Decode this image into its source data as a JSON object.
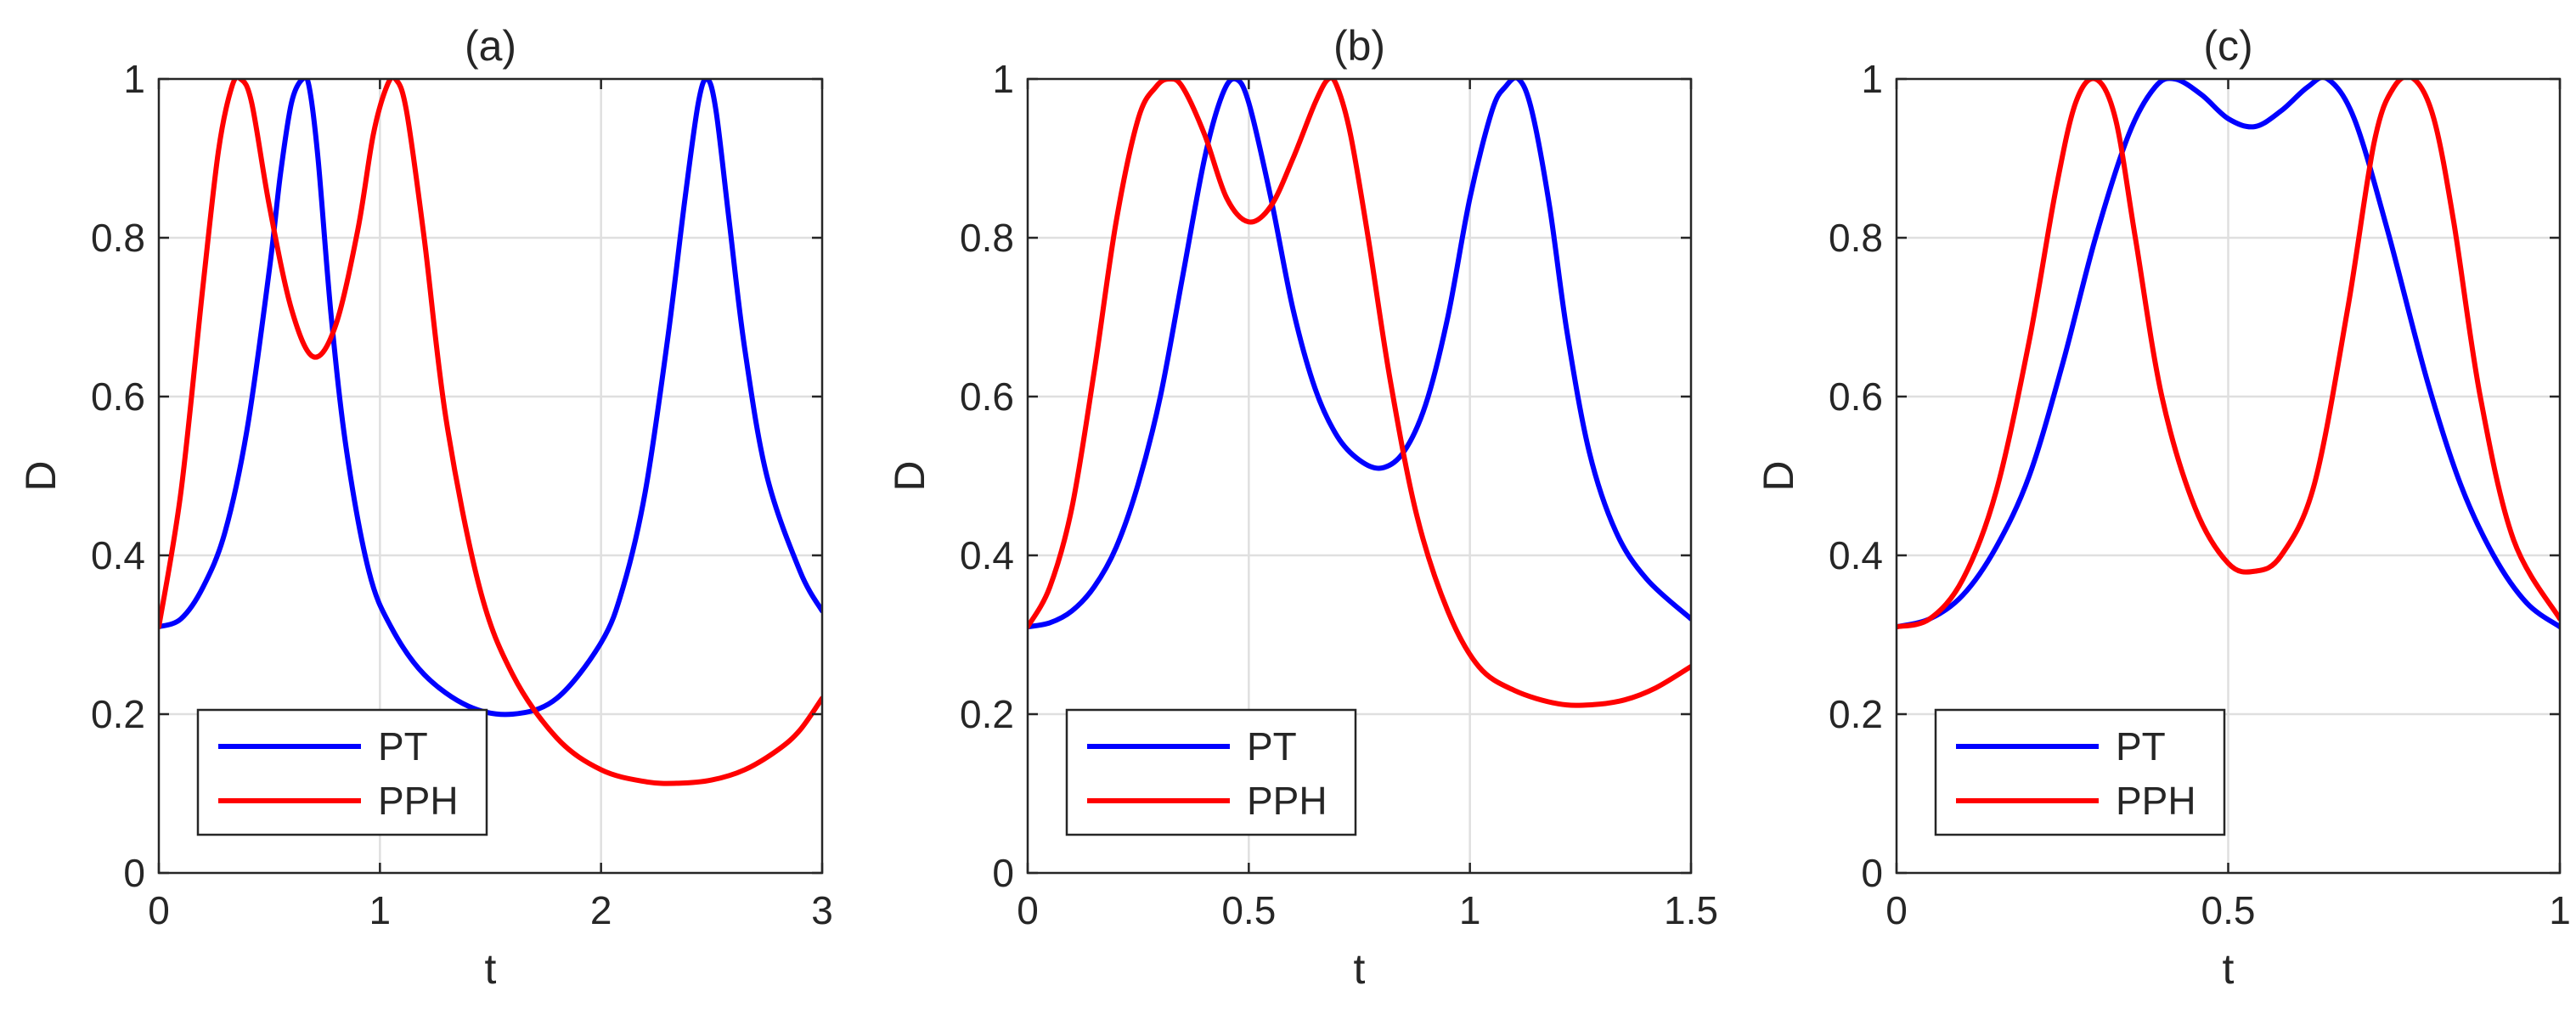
{
  "chart_data": [
    {
      "type": "line",
      "title": "(a)",
      "xlabel": "t",
      "ylabel": "D",
      "xlim": [
        0,
        3
      ],
      "ylim": [
        0,
        1
      ],
      "xticks": [
        0,
        1,
        2,
        3
      ],
      "xtick_labels": [
        "0",
        "1",
        "2",
        "3"
      ],
      "yticks": [
        0,
        0.2,
        0.4,
        0.6,
        0.8,
        1
      ],
      "ytick_labels": [
        "0",
        "0.2",
        "0.4",
        "0.6",
        "0.8",
        "1"
      ],
      "grid": true,
      "legend_position": "bottom-left",
      "series": [
        {
          "name": "PT",
          "color": "#0000ff",
          "x": [
            0,
            0.1,
            0.2,
            0.3,
            0.4,
            0.5,
            0.55,
            0.6,
            0.65,
            0.68,
            0.72,
            0.78,
            0.85,
            0.95,
            1.05,
            1.2,
            1.4,
            1.6,
            1.8,
            2.0,
            2.1,
            2.2,
            2.3,
            2.38,
            2.44,
            2.48,
            2.52,
            2.58,
            2.65,
            2.75,
            2.9,
            3.0
          ],
          "y": [
            0.31,
            0.32,
            0.36,
            0.43,
            0.56,
            0.76,
            0.88,
            0.97,
            1.0,
            0.99,
            0.9,
            0.7,
            0.53,
            0.38,
            0.31,
            0.25,
            0.21,
            0.2,
            0.22,
            0.29,
            0.36,
            0.48,
            0.67,
            0.85,
            0.97,
            1.0,
            0.96,
            0.82,
            0.66,
            0.5,
            0.38,
            0.33
          ]
        },
        {
          "name": "PPH",
          "color": "#ff0000",
          "x": [
            0,
            0.1,
            0.2,
            0.27,
            0.33,
            0.37,
            0.42,
            0.5,
            0.6,
            0.7,
            0.8,
            0.9,
            0.97,
            1.03,
            1.07,
            1.12,
            1.2,
            1.3,
            1.45,
            1.6,
            1.8,
            2.0,
            2.2,
            2.35,
            2.5,
            2.65,
            2.8,
            2.9,
            3.0
          ],
          "y": [
            0.31,
            0.48,
            0.74,
            0.91,
            0.99,
            1.0,
            0.97,
            0.84,
            0.71,
            0.65,
            0.69,
            0.81,
            0.93,
            0.99,
            1.0,
            0.96,
            0.8,
            0.57,
            0.36,
            0.25,
            0.17,
            0.13,
            0.115,
            0.113,
            0.117,
            0.13,
            0.155,
            0.18,
            0.22
          ]
        }
      ]
    },
    {
      "type": "line",
      "title": "(b)",
      "xlabel": "t",
      "ylabel": "D",
      "xlim": [
        0,
        1.5
      ],
      "ylim": [
        0,
        1
      ],
      "xticks": [
        0,
        0.5,
        1,
        1.5
      ],
      "xtick_labels": [
        "0",
        "0.5",
        "1",
        "1.5"
      ],
      "yticks": [
        0,
        0.2,
        0.4,
        0.6,
        0.8,
        1
      ],
      "ytick_labels": [
        "0",
        "0.2",
        "0.4",
        "0.6",
        "0.8",
        "1"
      ],
      "grid": true,
      "legend_position": "bottom-left",
      "series": [
        {
          "name": "PT",
          "color": "#0000ff",
          "x": [
            0,
            0.05,
            0.1,
            0.15,
            0.2,
            0.25,
            0.3,
            0.35,
            0.4,
            0.44,
            0.47,
            0.5,
            0.55,
            0.6,
            0.65,
            0.7,
            0.75,
            0.8,
            0.85,
            0.9,
            0.95,
            1.0,
            1.05,
            1.08,
            1.11,
            1.14,
            1.18,
            1.22,
            1.27,
            1.33,
            1.4,
            1.5
          ],
          "y": [
            0.31,
            0.315,
            0.33,
            0.36,
            0.41,
            0.49,
            0.6,
            0.75,
            0.9,
            0.98,
            1.0,
            0.97,
            0.85,
            0.71,
            0.61,
            0.55,
            0.52,
            0.51,
            0.53,
            0.59,
            0.7,
            0.85,
            0.96,
            0.99,
            1.0,
            0.96,
            0.84,
            0.68,
            0.53,
            0.43,
            0.37,
            0.32
          ]
        },
        {
          "name": "PPH",
          "color": "#ff0000",
          "x": [
            0,
            0.05,
            0.1,
            0.15,
            0.2,
            0.25,
            0.29,
            0.32,
            0.35,
            0.4,
            0.45,
            0.5,
            0.55,
            0.6,
            0.65,
            0.68,
            0.7,
            0.73,
            0.77,
            0.82,
            0.88,
            0.95,
            1.02,
            1.1,
            1.2,
            1.28,
            1.35,
            1.42,
            1.5
          ],
          "y": [
            0.31,
            0.36,
            0.46,
            0.63,
            0.82,
            0.95,
            0.99,
            1.0,
            0.99,
            0.93,
            0.85,
            0.82,
            0.84,
            0.9,
            0.97,
            1.0,
            0.99,
            0.93,
            0.8,
            0.62,
            0.45,
            0.33,
            0.26,
            0.23,
            0.213,
            0.212,
            0.218,
            0.233,
            0.26
          ]
        }
      ]
    },
    {
      "type": "line",
      "title": "(c)",
      "xlabel": "t",
      "ylabel": "D",
      "xlim": [
        0,
        1
      ],
      "ylim": [
        0,
        1
      ],
      "xticks": [
        0,
        0.5,
        1
      ],
      "xtick_labels": [
        "0",
        "0.5",
        "1"
      ],
      "yticks": [
        0,
        0.2,
        0.4,
        0.6,
        0.8,
        1
      ],
      "ytick_labels": [
        "0",
        "0.2",
        "0.4",
        "0.6",
        "0.8",
        "1"
      ],
      "grid": true,
      "legend_position": "bottom-left",
      "series": [
        {
          "name": "PT",
          "color": "#0000ff",
          "x": [
            0,
            0.05,
            0.1,
            0.15,
            0.2,
            0.25,
            0.3,
            0.35,
            0.39,
            0.42,
            0.46,
            0.5,
            0.54,
            0.58,
            0.62,
            0.65,
            0.69,
            0.74,
            0.8,
            0.85,
            0.9,
            0.95,
            1.0
          ],
          "y": [
            0.31,
            0.32,
            0.35,
            0.41,
            0.5,
            0.64,
            0.8,
            0.93,
            0.99,
            1.0,
            0.98,
            0.95,
            0.94,
            0.96,
            0.99,
            1.0,
            0.95,
            0.81,
            0.62,
            0.49,
            0.4,
            0.34,
            0.31
          ]
        },
        {
          "name": "PPH",
          "color": "#ff0000",
          "x": [
            0,
            0.05,
            0.1,
            0.15,
            0.2,
            0.24,
            0.27,
            0.3,
            0.33,
            0.36,
            0.4,
            0.45,
            0.5,
            0.54,
            0.58,
            0.63,
            0.68,
            0.72,
            0.75,
            0.78,
            0.81,
            0.84,
            0.88,
            0.93,
            1.0
          ],
          "y": [
            0.31,
            0.32,
            0.37,
            0.48,
            0.67,
            0.86,
            0.97,
            1.0,
            0.95,
            0.8,
            0.6,
            0.46,
            0.39,
            0.38,
            0.4,
            0.49,
            0.71,
            0.92,
            0.99,
            1.0,
            0.95,
            0.82,
            0.6,
            0.42,
            0.32
          ]
        }
      ]
    }
  ]
}
